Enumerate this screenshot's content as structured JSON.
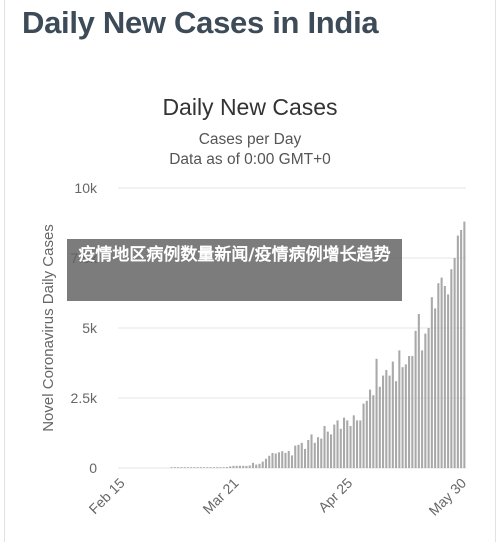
{
  "page": {
    "title": "Daily New Cases in India"
  },
  "overlay": {
    "text": "疫情地区病例数量新闻/疫情病例增长趋势"
  },
  "colors": {
    "bar": "#a9a9a9",
    "grid": "#e6e6e6",
    "text": "#666666",
    "overlay": "#5f5f5f"
  },
  "chart_data": {
    "type": "bar",
    "title": "Daily New Cases",
    "subtitle": [
      "Cases per Day",
      "Data as of 0:00 GMT+0"
    ],
    "ylabel": "Novel Coronavirus Daily Cases",
    "xlabel": "",
    "ylim": [
      0,
      10000
    ],
    "yticks": [
      0,
      2500,
      5000,
      7500,
      10000
    ],
    "ytick_labels": [
      "0",
      "2.5k",
      "5k",
      "7.5k",
      "10k"
    ],
    "xtick_labels": [
      "Feb 15",
      "Mar 21",
      "Apr 25",
      "May 30"
    ],
    "grid": true,
    "legend": "none",
    "categories": [
      "Feb 15",
      "Feb 16",
      "Feb 17",
      "Feb 18",
      "Feb 19",
      "Feb 20",
      "Feb 21",
      "Feb 22",
      "Feb 23",
      "Feb 24",
      "Feb 25",
      "Feb 26",
      "Feb 27",
      "Feb 28",
      "Feb 29",
      "Mar 1",
      "Mar 2",
      "Mar 3",
      "Mar 4",
      "Mar 5",
      "Mar 6",
      "Mar 7",
      "Mar 8",
      "Mar 9",
      "Mar 10",
      "Mar 11",
      "Mar 12",
      "Mar 13",
      "Mar 14",
      "Mar 15",
      "Mar 16",
      "Mar 17",
      "Mar 18",
      "Mar 19",
      "Mar 20",
      "Mar 21",
      "Mar 22",
      "Mar 23",
      "Mar 24",
      "Mar 25",
      "Mar 26",
      "Mar 27",
      "Mar 28",
      "Mar 29",
      "Mar 30",
      "Mar 31",
      "Apr 1",
      "Apr 2",
      "Apr 3",
      "Apr 4",
      "Apr 5",
      "Apr 6",
      "Apr 7",
      "Apr 8",
      "Apr 9",
      "Apr 10",
      "Apr 11",
      "Apr 12",
      "Apr 13",
      "Apr 14",
      "Apr 15",
      "Apr 16",
      "Apr 17",
      "Apr 18",
      "Apr 19",
      "Apr 20",
      "Apr 21",
      "Apr 22",
      "Apr 23",
      "Apr 24",
      "Apr 25",
      "Apr 26",
      "Apr 27",
      "Apr 28",
      "Apr 29",
      "Apr 30",
      "May 1",
      "May 2",
      "May 3",
      "May 4",
      "May 5",
      "May 6",
      "May 7",
      "May 8",
      "May 9",
      "May 10",
      "May 11",
      "May 12",
      "May 13",
      "May 14",
      "May 15",
      "May 16",
      "May 17",
      "May 18",
      "May 19",
      "May 20",
      "May 21",
      "May 22",
      "May 23",
      "May 24",
      "May 25",
      "May 26",
      "May 27",
      "May 28",
      "May 29",
      "May 30",
      "May 31"
    ],
    "values": [
      0,
      0,
      0,
      0,
      0,
      0,
      0,
      0,
      0,
      0,
      0,
      0,
      0,
      0,
      0,
      0,
      2,
      1,
      22,
      2,
      1,
      3,
      5,
      9,
      15,
      8,
      10,
      10,
      19,
      14,
      11,
      17,
      23,
      34,
      58,
      76,
      78,
      80,
      79,
      75,
      88,
      185,
      122,
      150,
      227,
      330,
      437,
      536,
      518,
      560,
      600,
      540,
      610,
      450,
      800,
      830,
      900,
      680,
      1000,
      1200,
      900,
      1100,
      1050,
      1500,
      1300,
      1200,
      1550,
      1700,
      1400,
      1800,
      1700,
      1500,
      1880,
      1700,
      1700,
      2300,
      2400,
      2800,
      2600,
      3900,
      2900,
      3300,
      3500,
      3300,
      3800,
      3100,
      4200,
      3600,
      3700,
      4000,
      4000,
      4900,
      5500,
      4200,
      4800,
      5000,
      6100,
      5700,
      6600,
      6800,
      6500,
      6200,
      7100,
      7500,
      8300,
      8500,
      8800
    ]
  }
}
